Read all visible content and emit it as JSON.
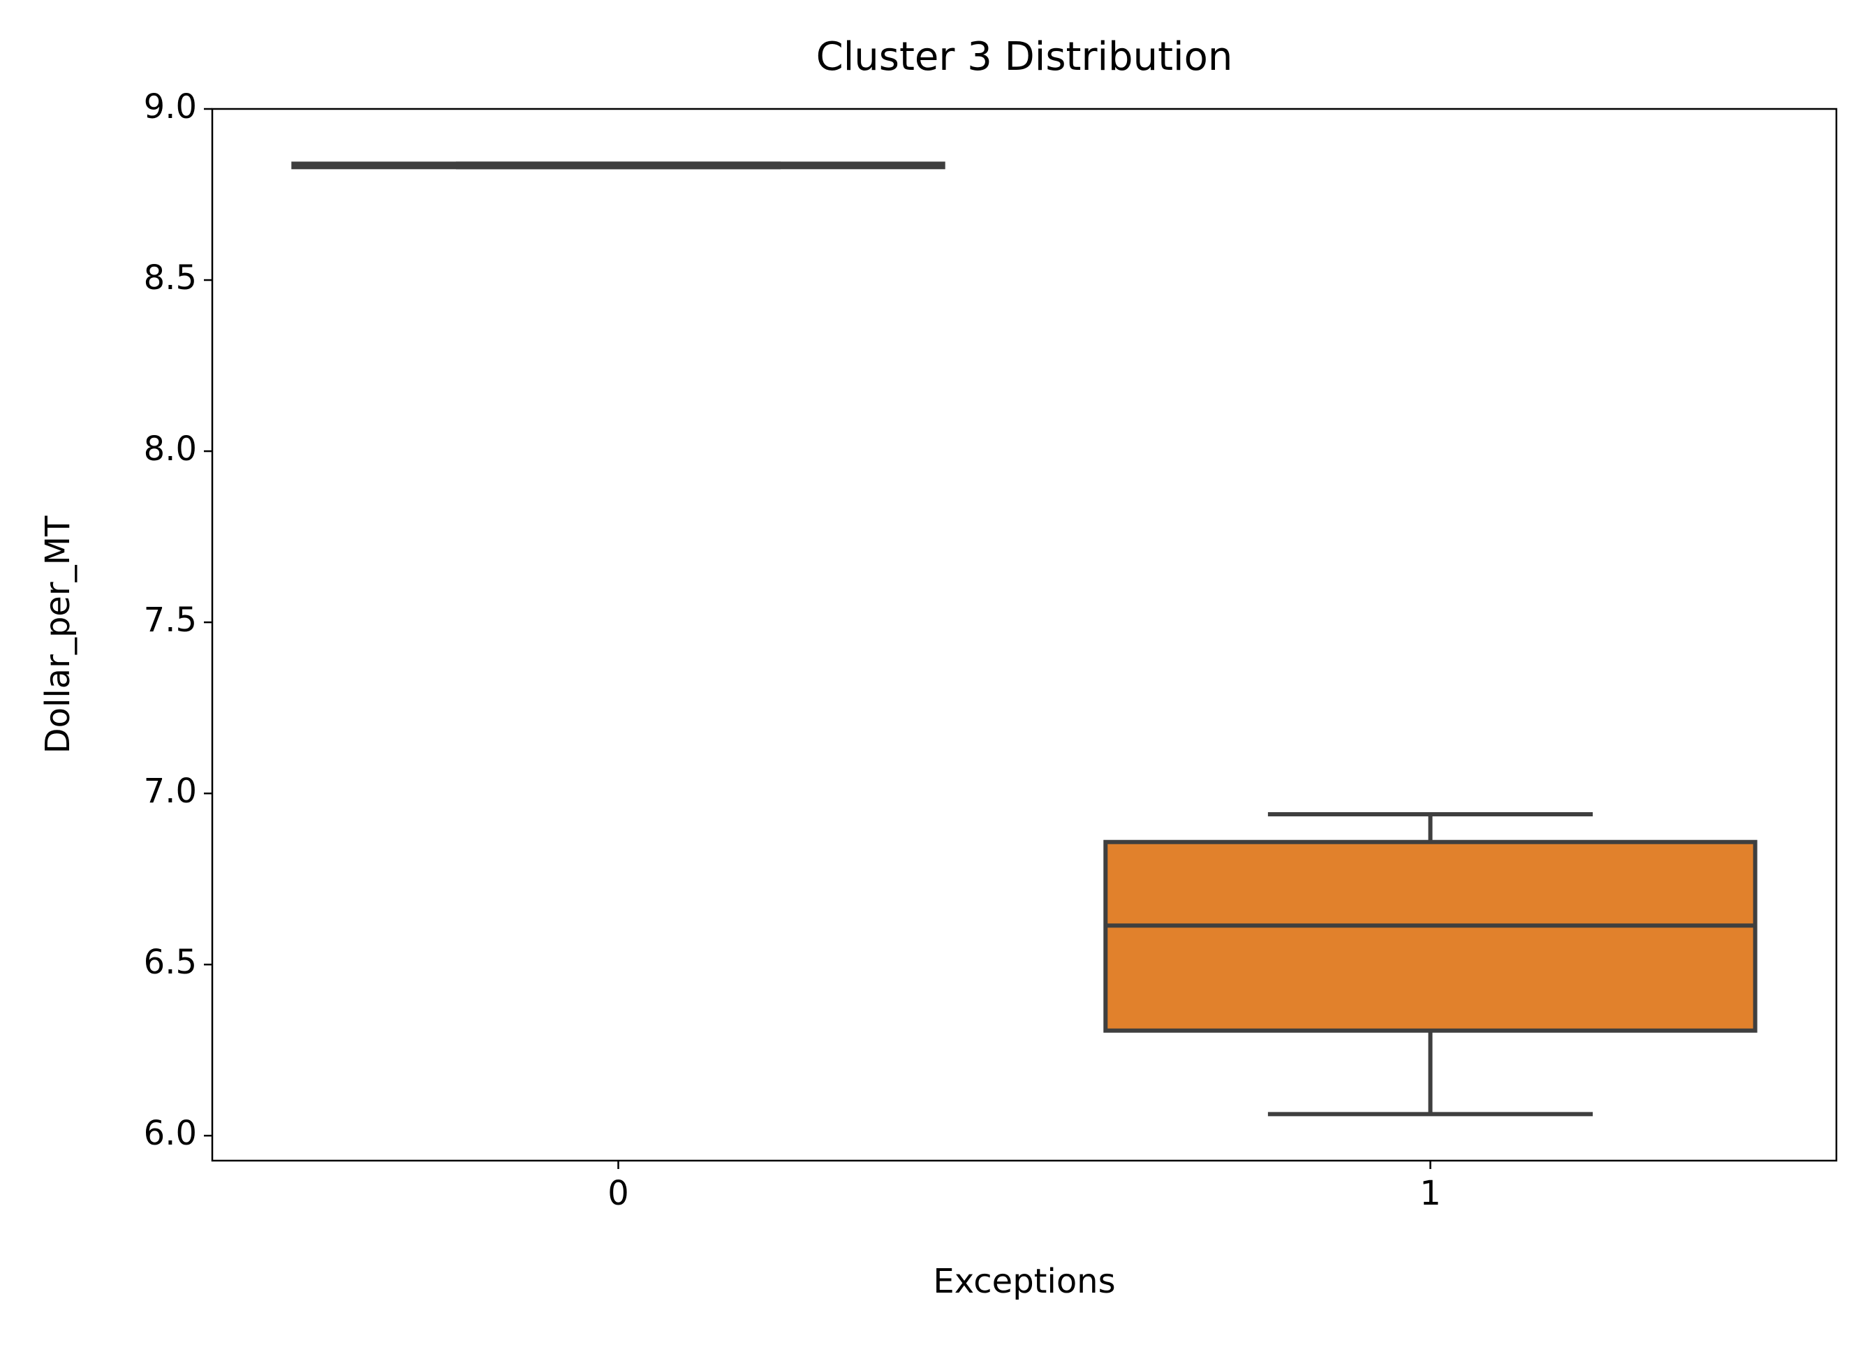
{
  "chart_data": {
    "type": "box",
    "title": "Cluster 3 Distribution",
    "x_label": "Exceptions",
    "y_label": "Dollar_per_MT",
    "categories": [
      "0",
      "1"
    ],
    "colors": [
      "#3274a1",
      "#e1812c"
    ],
    "boxes": [
      {
        "min": 8.83,
        "q1": 8.83,
        "median": 8.835,
        "q3": 8.84,
        "max": 8.84
      },
      {
        "min": 6.063,
        "q1": 6.307,
        "median": 6.614,
        "q3": 6.858,
        "max": 6.939
      }
    ],
    "ylim": [
      5.927,
      9.0
    ],
    "yticks": [
      {
        "value": 6,
        "label": "6.0"
      },
      6.5,
      {
        "value": 7,
        "label": "7.0"
      },
      7.5,
      {
        "value": 8,
        "label": "8.0"
      },
      8.5,
      {
        "value": 9,
        "label": "9.0"
      }
    ]
  }
}
